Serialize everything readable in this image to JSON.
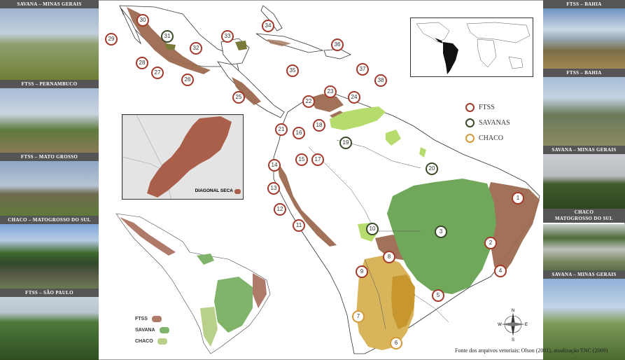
{
  "photos_left": [
    {
      "caption": "SAVANA – MINAS GERAIS",
      "sky": "#8ea7c8",
      "ground": "#7c8c3e"
    },
    {
      "caption": "FTSS – PERNAMBUCO",
      "sky": "#b9c8dc",
      "ground": "#6e6040"
    },
    {
      "caption": "FTSS – MATO GROSSO",
      "sky": "#9fb3cc",
      "ground": "#6a7840"
    },
    {
      "caption": "CHACO – MATOGROSSO DO SUL",
      "sky": "#90aed8",
      "ground": "#4a5a3a"
    },
    {
      "caption": "FTSS – SÃO PAULO",
      "sky": "#bdcad8",
      "ground": "#3c5a2c"
    }
  ],
  "photos_right": [
    {
      "caption": "FTSS – BAHIA",
      "sky": "#7e9fc4",
      "ground": "#8a7a4c"
    },
    {
      "caption": "FTSS – BAHIA",
      "sky": "#a8bfd8",
      "ground": "#7c7a5a"
    },
    {
      "caption": "SAVANA – MINAS GERAIS",
      "sky": "#c5ccd2",
      "ground": "#3d5a2a"
    },
    {
      "caption": "CHACO\nMATOGROSSO DO SUL",
      "sky": "#c4c8c4",
      "ground": "#6a7c52"
    },
    {
      "caption": "SAVANA – MINAS GERAIS",
      "sky": "#98b4d6",
      "ground": "#4e6a34"
    }
  ],
  "legend": [
    {
      "label": "FTSS",
      "color": "#a33a2c"
    },
    {
      "label": "SAVANAS",
      "color": "#3a4a2a"
    },
    {
      "label": "CHACO",
      "color": "#d49a3a"
    }
  ],
  "mini_legend": [
    {
      "label": "FTSS",
      "color": "#b07a6a"
    },
    {
      "label": "SAVANA",
      "color": "#7fb46a"
    },
    {
      "label": "CHACO",
      "color": "#b8d08a"
    }
  ],
  "inset_label": "DIAGONAL SECA",
  "source": "Fonte dos arquivos vetoriais: Olson (2001), atualização TNC (2009)",
  "compass": {
    "n": "N",
    "s": "S",
    "e": "E",
    "w": "W"
  },
  "colors": {
    "ftss": "#9c6a50",
    "savana": "#6fa85a",
    "chaco": "#d8b45a",
    "chaco_dark": "#c8962e",
    "cerrado_light": "#b6dc6e"
  },
  "markers": [
    {
      "n": "1",
      "type": "ftss"
    },
    {
      "n": "2",
      "type": "ftss"
    },
    {
      "n": "3",
      "type": "sav"
    },
    {
      "n": "4",
      "type": "ftss"
    },
    {
      "n": "5",
      "type": "ftss"
    },
    {
      "n": "6",
      "type": "chaco"
    },
    {
      "n": "7",
      "type": "chaco"
    },
    {
      "n": "8",
      "type": "ftss"
    },
    {
      "n": "9",
      "type": "ftss"
    },
    {
      "n": "10",
      "type": "sav"
    },
    {
      "n": "11",
      "type": "ftss"
    },
    {
      "n": "12",
      "type": "ftss"
    },
    {
      "n": "13",
      "type": "ftss"
    },
    {
      "n": "14",
      "type": "ftss"
    },
    {
      "n": "15",
      "type": "ftss"
    },
    {
      "n": "16",
      "type": "ftss"
    },
    {
      "n": "17",
      "type": "ftss"
    },
    {
      "n": "18",
      "type": "ftss"
    },
    {
      "n": "19",
      "type": "sav"
    },
    {
      "n": "20",
      "type": "sav"
    },
    {
      "n": "21",
      "type": "ftss"
    },
    {
      "n": "22",
      "type": "ftss"
    },
    {
      "n": "23",
      "type": "ftss"
    },
    {
      "n": "24",
      "type": "ftss"
    },
    {
      "n": "25",
      "type": "ftss"
    },
    {
      "n": "26",
      "type": "ftss"
    },
    {
      "n": "27",
      "type": "ftss"
    },
    {
      "n": "28",
      "type": "ftss"
    },
    {
      "n": "29",
      "type": "ftss"
    },
    {
      "n": "30",
      "type": "ftss"
    },
    {
      "n": "31",
      "type": "sav"
    },
    {
      "n": "32",
      "type": "ftss"
    },
    {
      "n": "33",
      "type": "ftss"
    },
    {
      "n": "34",
      "type": "ftss"
    },
    {
      "n": "35",
      "type": "ftss"
    },
    {
      "n": "36",
      "type": "ftss"
    },
    {
      "n": "37",
      "type": "ftss"
    },
    {
      "n": "38",
      "type": "ftss"
    }
  ]
}
